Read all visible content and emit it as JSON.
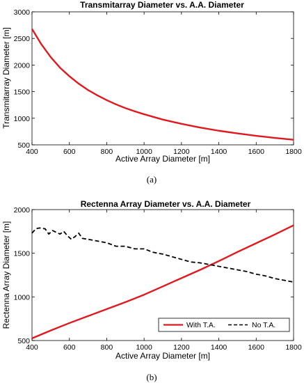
{
  "chart_data": [
    {
      "type": "line",
      "title": "Transmitarray Diameter vs. A.A. Diameter",
      "xlabel": "Active Array Diameter [m]",
      "ylabel": "Transmitarray Diameter [m]",
      "caption": "(a)",
      "xlim": [
        400,
        1800
      ],
      "ylim": [
        500,
        3000
      ],
      "xticks": [
        400,
        600,
        800,
        1000,
        1200,
        1400,
        1600,
        1800
      ],
      "yticks": [
        500,
        1000,
        1500,
        2000,
        2500,
        3000
      ],
      "grid": false,
      "series": [
        {
          "color": "#e0191e",
          "style": "solid",
          "x": [
            400,
            450,
            500,
            550,
            600,
            650,
            700,
            750,
            800,
            850,
            900,
            950,
            1000,
            1100,
            1200,
            1300,
            1400,
            1500,
            1600,
            1700,
            1800
          ],
          "y": [
            2680,
            2390,
            2150,
            1950,
            1790,
            1650,
            1530,
            1430,
            1340,
            1260,
            1190,
            1130,
            1075,
            975,
            895,
            825,
            765,
            715,
            670,
            630,
            595
          ]
        }
      ]
    },
    {
      "type": "line",
      "title": "Rectenna Array Diameter vs. A.A. Diameter",
      "xlabel": "Active Array Diameter [m]",
      "ylabel": "Rectenna Array Diameter [m]",
      "caption": "(b)",
      "xlim": [
        400,
        1800
      ],
      "ylim": [
        500,
        2000
      ],
      "xticks": [
        400,
        600,
        800,
        1000,
        1200,
        1400,
        1600,
        1800
      ],
      "yticks": [
        500,
        1000,
        1500,
        2000
      ],
      "grid": false,
      "legend_position": "bottom-right",
      "series": [
        {
          "name": "With T.A.",
          "color": "#e0191e",
          "style": "solid",
          "x": [
            400,
            500,
            600,
            700,
            800,
            900,
            1000,
            1100,
            1200,
            1300,
            1400,
            1500,
            1600,
            1700,
            1800
          ],
          "y": [
            525,
            615,
            700,
            780,
            860,
            940,
            1025,
            1120,
            1215,
            1310,
            1410,
            1515,
            1615,
            1715,
            1820
          ]
        },
        {
          "name": "No T.A.",
          "color": "#000000",
          "style": "dashed",
          "x": [
            400,
            420,
            440,
            470,
            490,
            510,
            530,
            550,
            570,
            590,
            610,
            630,
            650,
            670,
            700,
            750,
            800,
            850,
            900,
            950,
            1000,
            1050,
            1100,
            1150,
            1200,
            1250,
            1300,
            1350,
            1400,
            1450,
            1500,
            1550,
            1600,
            1650,
            1700,
            1750,
            1800
          ],
          "y": [
            1730,
            1780,
            1790,
            1780,
            1720,
            1760,
            1740,
            1720,
            1750,
            1700,
            1660,
            1690,
            1730,
            1670,
            1660,
            1640,
            1620,
            1580,
            1580,
            1550,
            1550,
            1510,
            1490,
            1460,
            1430,
            1400,
            1390,
            1370,
            1350,
            1330,
            1310,
            1290,
            1260,
            1240,
            1210,
            1190,
            1170
          ]
        }
      ]
    }
  ]
}
